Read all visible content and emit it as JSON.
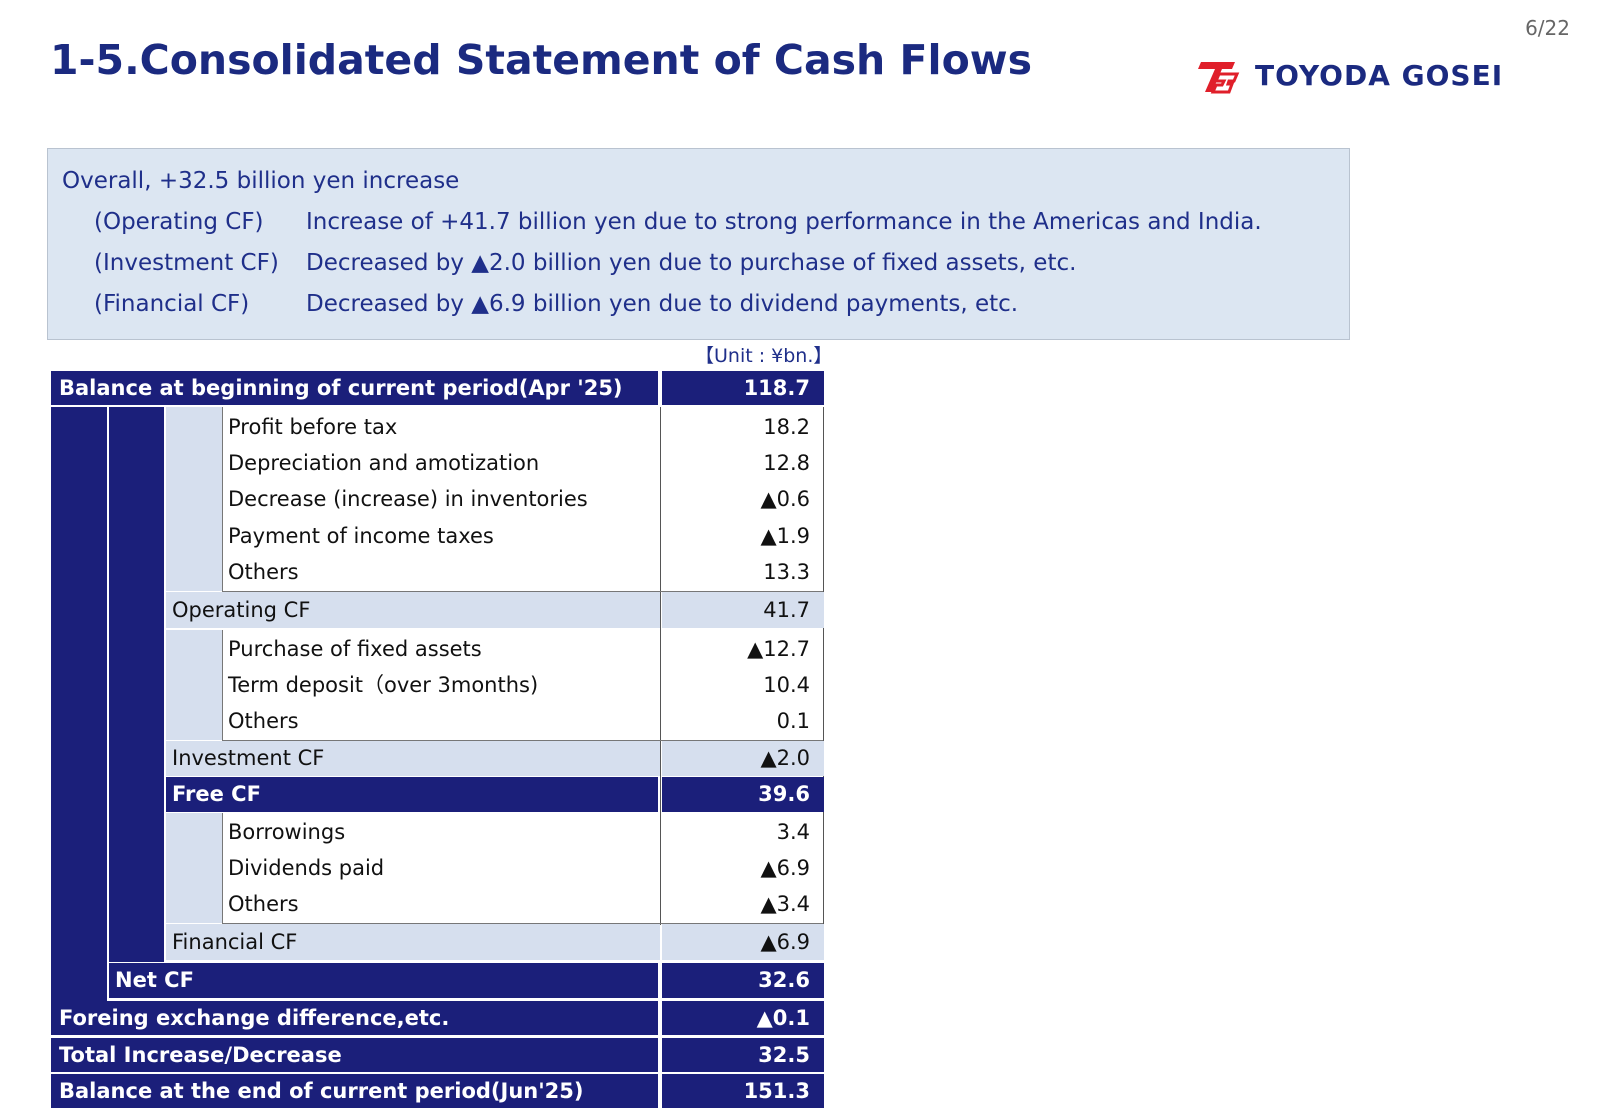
{
  "page_number": "6/22",
  "title": "1-5.Consolidated Statement of Cash Flows",
  "logo": {
    "name": "TOYODA GOSEI",
    "icon": "tg-logo-icon",
    "color_mark": "#e01f2a"
  },
  "summary": {
    "overall": "Overall, +32.5 billion yen increase",
    "lines": [
      {
        "label": "(Operating CF)",
        "text": "Increase of +41.7 billion yen due to strong performance in the Americas and India."
      },
      {
        "label": "(Investment CF)",
        "text": "Decreased by ▲2.0 billion yen due to purchase of fixed assets, etc."
      },
      {
        "label": "(Financial CF)",
        "text": "Decreased by ▲6.9 billion yen due to dividend payments,  etc."
      }
    ]
  },
  "unit": "【Unit : ¥bn.】",
  "table": {
    "beginning": {
      "label": "Balance at beginning of current period(Apr '25)",
      "value": "118.7"
    },
    "operating_items": [
      {
        "label": "Profit before tax",
        "value": "18.2"
      },
      {
        "label": "Depreciation and amotization",
        "value": "12.8"
      },
      {
        "label": "Decrease (increase) in inventories",
        "value": "▲0.6"
      },
      {
        "label": "Payment of income taxes",
        "value": "▲1.9"
      },
      {
        "label": "Others",
        "value": "13.3"
      }
    ],
    "operating_cf": {
      "label": "Operating CF",
      "value": "41.7"
    },
    "investment_items": [
      {
        "label": "Purchase of fixed assets",
        "value": "▲12.7"
      },
      {
        "label": "Term deposit（over 3months)",
        "value": "10.4"
      },
      {
        "label": "Others",
        "value": "0.1"
      }
    ],
    "investment_cf": {
      "label": "Investment CF",
      "value": "▲2.0"
    },
    "free_cf": {
      "label": "Free CF",
      "value": "39.6"
    },
    "financial_items": [
      {
        "label": "Borrowings",
        "value": "3.4"
      },
      {
        "label": "Dividends paid",
        "value": "▲6.9"
      },
      {
        "label": "Others",
        "value": "▲3.4"
      }
    ],
    "financial_cf": {
      "label": "Financial CF",
      "value": "▲6.9"
    },
    "net_cf": {
      "label": "Net CF",
      "value": "32.6"
    },
    "fx": {
      "label": "Foreing exchange difference,etc.",
      "value": "▲0.1"
    },
    "total": {
      "label": "Total Increase/Decrease",
      "value": "32.5"
    },
    "ending": {
      "label": "Balance at the end of current period(Jun'25)",
      "value": "151.3"
    }
  }
}
